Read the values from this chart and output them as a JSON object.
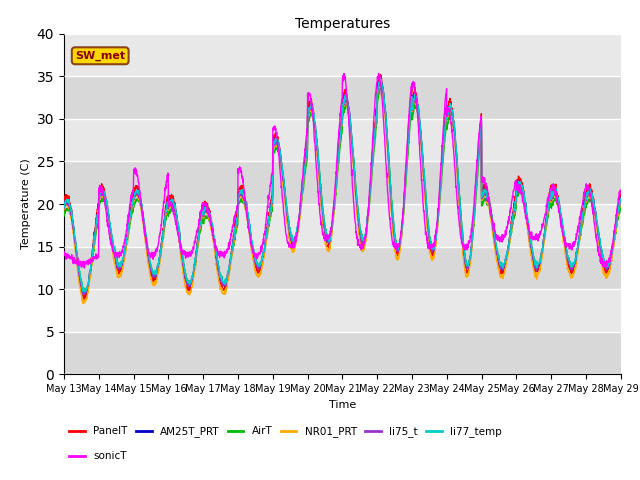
{
  "title": "Temperatures",
  "xlabel": "Time",
  "ylabel": "Temperature (C)",
  "ylim": [
    0,
    40
  ],
  "yticks": [
    0,
    5,
    10,
    15,
    20,
    25,
    30,
    35,
    40
  ],
  "n_days": 16,
  "annotation_text": "SW_met",
  "series": {
    "PanelT": {
      "color": "#ff0000"
    },
    "AM25T_PRT": {
      "color": "#0000cc"
    },
    "AirT": {
      "color": "#00bb00"
    },
    "NR01_PRT": {
      "color": "#ffaa00"
    },
    "li75_t": {
      "color": "#9933cc"
    },
    "li77_temp": {
      "color": "#00cccc"
    },
    "sonicT": {
      "color": "#ff00ff"
    }
  },
  "bg_color": "#e8e8e8",
  "fig_bg": "#ffffff",
  "peak_temps": [
    21,
    22,
    22,
    21,
    20,
    22,
    28,
    32,
    33,
    35,
    33,
    32,
    22,
    23,
    22,
    22
  ],
  "min_temps": [
    9,
    12,
    11,
    10,
    10,
    12,
    15,
    15,
    15,
    14,
    14,
    12,
    12,
    12,
    12,
    12
  ],
  "sonic_peaks": [
    14,
    22,
    24,
    20,
    20,
    24,
    29,
    33,
    35,
    35,
    34,
    31,
    23,
    22,
    22,
    22
  ],
  "sonic_mins": [
    13,
    14,
    14,
    14,
    14,
    14,
    15,
    16,
    15,
    15,
    15,
    15,
    16,
    16,
    15,
    13
  ]
}
